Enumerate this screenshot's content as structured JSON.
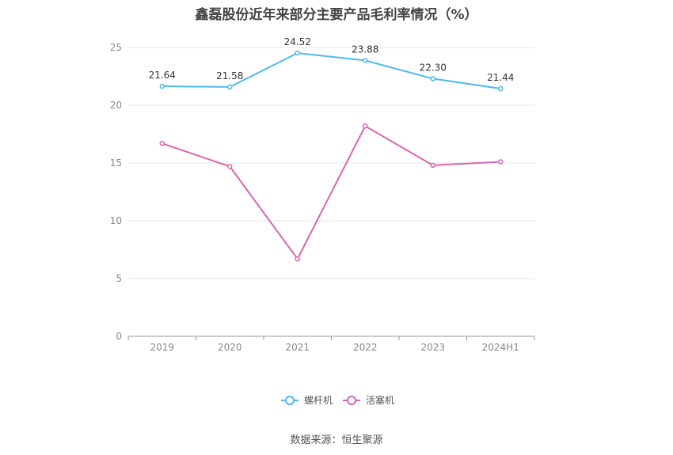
{
  "chart_data": {
    "type": "line",
    "title": "鑫磊股份近年来部分主要产品毛利率情况（%）",
    "categories": [
      "2019",
      "2020",
      "2021",
      "2022",
      "2023",
      "2024H1"
    ],
    "series": [
      {
        "name": "螺杆机",
        "color": "#4db8f0",
        "values": [
          21.64,
          21.58,
          24.52,
          23.88,
          22.3,
          21.44
        ],
        "labels": [
          "21.64",
          "21.58",
          "24.52",
          "23.88",
          "22.30",
          "21.44"
        ],
        "show_labels": true
      },
      {
        "name": "活塞机",
        "color": "#d966b0",
        "values": [
          16.7,
          14.7,
          6.7,
          18.2,
          14.8,
          15.1
        ],
        "show_labels": false
      }
    ],
    "ylim": [
      0,
      25
    ],
    "yticks": [
      "0",
      "5",
      "10",
      "15",
      "20",
      "25"
    ],
    "grid": true,
    "legend_position": "bottom-center"
  },
  "source": "数据来源：恒生聚源"
}
